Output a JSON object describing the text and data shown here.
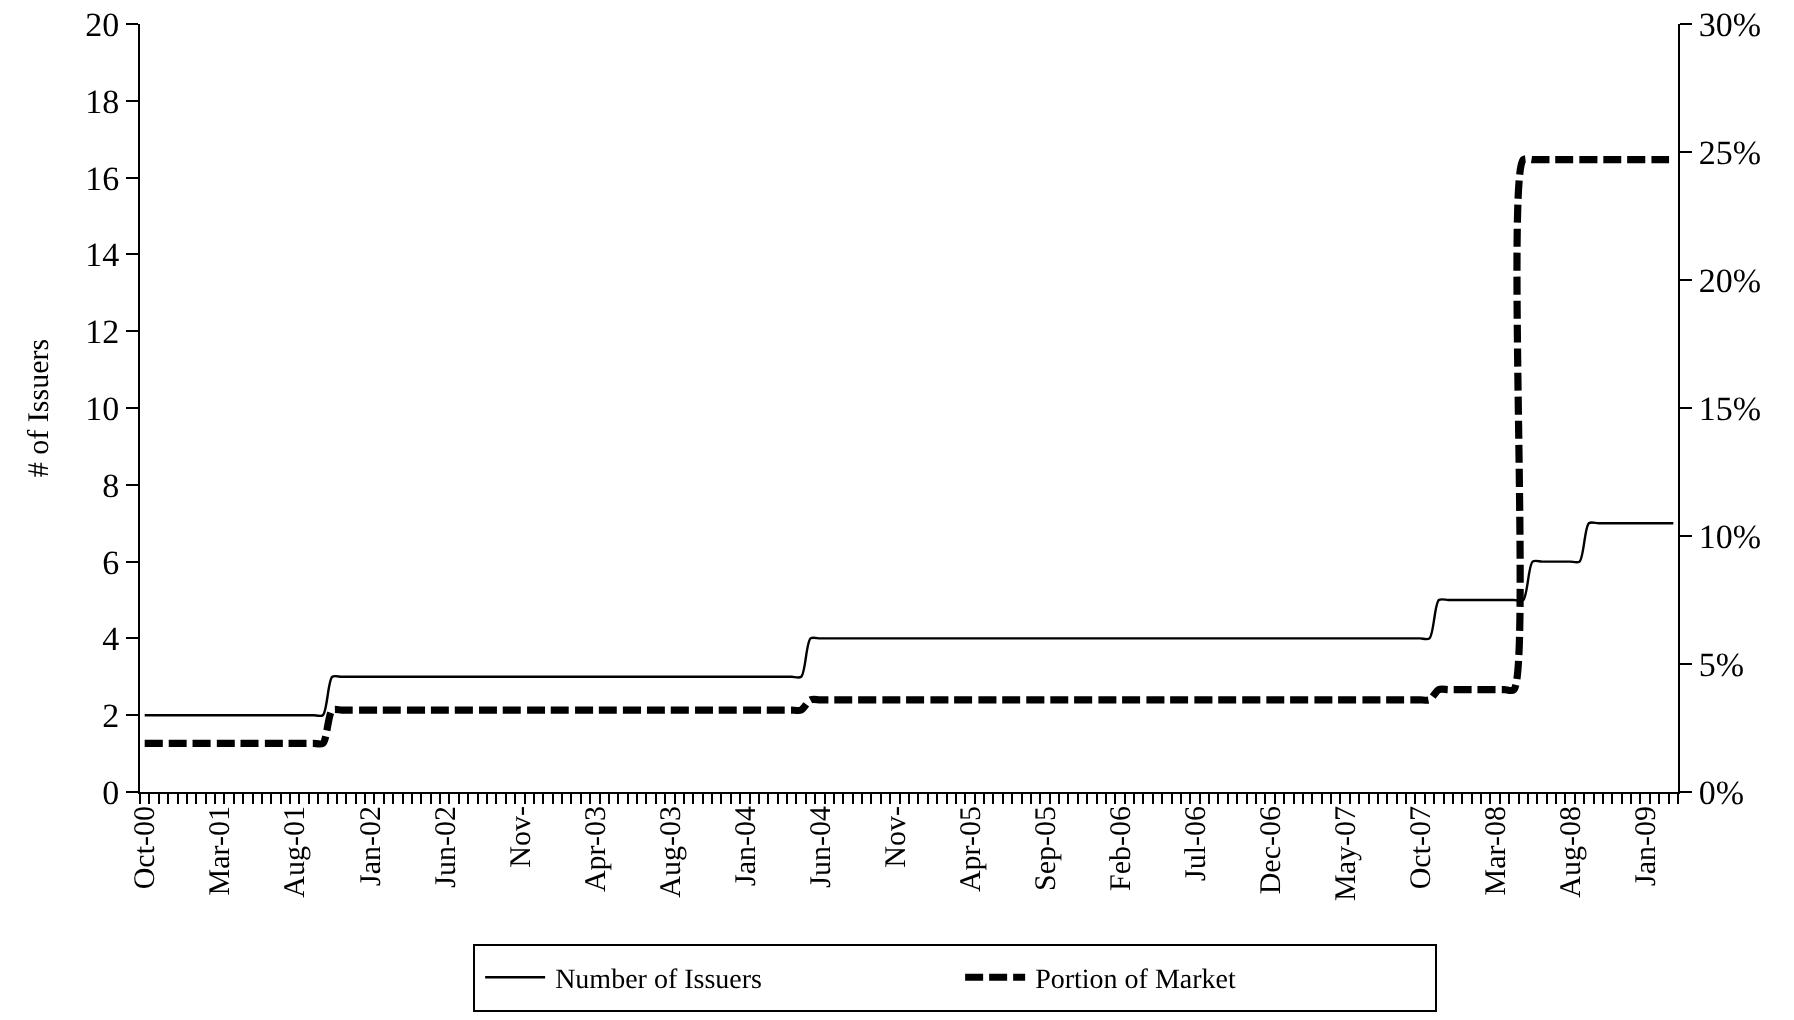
{
  "chart_data": {
    "type": "line",
    "categories": [
      "Oct-00",
      null,
      null,
      null,
      null,
      null,
      null,
      null,
      "Mar-01",
      null,
      null,
      null,
      null,
      null,
      null,
      null,
      "Aug-01",
      null,
      null,
      null,
      null,
      null,
      null,
      null,
      "Jan-02",
      null,
      null,
      null,
      null,
      null,
      null,
      null,
      "Jun-02",
      null,
      null,
      null,
      null,
      null,
      null,
      null,
      "Nov-",
      null,
      null,
      null,
      null,
      null,
      null,
      null,
      "Apr-03",
      null,
      null,
      null,
      null,
      null,
      null,
      null,
      "Aug-03",
      null,
      null,
      null,
      null,
      null,
      null,
      null,
      "Jan-04",
      null,
      null,
      null,
      null,
      null,
      null,
      null,
      "Jun-04",
      null,
      null,
      null,
      null,
      null,
      null,
      null,
      "Nov-",
      null,
      null,
      null,
      null,
      null,
      null,
      null,
      "Apr-05",
      null,
      null,
      null,
      null,
      null,
      null,
      null,
      "Sep-05",
      null,
      null,
      null,
      null,
      null,
      null,
      null,
      "Feb-06",
      null,
      null,
      null,
      null,
      null,
      null,
      null,
      "Jul-06",
      null,
      null,
      null,
      null,
      null,
      null,
      null,
      "Dec-06",
      null,
      null,
      null,
      null,
      null,
      null,
      null,
      "May-07",
      null,
      null,
      null,
      null,
      null,
      null,
      null,
      "Oct-07",
      null,
      null,
      null,
      null,
      null,
      null,
      null,
      "Mar-08",
      null,
      null,
      null,
      null,
      null,
      null,
      null,
      "Aug-08",
      null,
      null,
      null,
      null,
      null,
      null,
      null,
      "Jan-09",
      null,
      null,
      null
    ],
    "series": [
      {
        "name": "Number of Issuers",
        "color": "#000000",
        "line_style": "solid",
        "values": [
          2,
          2,
          2,
          2,
          2,
          2,
          2,
          2,
          2,
          2,
          2,
          2,
          2,
          2,
          2,
          2,
          2,
          2,
          2,
          2,
          3,
          3,
          3,
          3,
          3,
          3,
          3,
          3,
          3,
          3,
          3,
          3,
          3,
          3,
          3,
          3,
          3,
          3,
          3,
          3,
          3,
          3,
          3,
          3,
          3,
          3,
          3,
          3,
          3,
          3,
          3,
          3,
          3,
          3,
          3,
          3,
          3,
          3,
          3,
          3,
          3,
          3,
          3,
          3,
          3,
          3,
          3,
          3,
          3,
          3,
          3,
          4,
          4,
          4,
          4,
          4,
          4,
          4,
          4,
          4,
          4,
          4,
          4,
          4,
          4,
          4,
          4,
          4,
          4,
          4,
          4,
          4,
          4,
          4,
          4,
          4,
          4,
          4,
          4,
          4,
          4,
          4,
          4,
          4,
          4,
          4,
          4,
          4,
          4,
          4,
          4,
          4,
          4,
          4,
          4,
          4,
          4,
          4,
          4,
          4,
          4,
          4,
          4,
          4,
          4,
          4,
          4,
          4,
          4,
          4,
          4,
          4,
          4,
          4,
          4,
          4,
          4,
          4,
          5,
          5,
          5,
          5,
          5,
          5,
          5,
          5,
          5,
          5,
          6,
          6,
          6,
          6,
          6,
          6,
          7,
          7,
          7,
          7,
          7,
          7,
          7,
          7,
          7,
          7
        ]
      },
      {
        "name": "Portion of Market",
        "color": "#000000",
        "line_style": "dashed",
        "axis": "y2",
        "values": [
          1.9,
          1.9,
          1.9,
          1.9,
          1.9,
          1.9,
          1.9,
          1.9,
          1.9,
          1.9,
          1.9,
          1.9,
          1.9,
          1.9,
          1.9,
          1.9,
          1.9,
          1.9,
          1.9,
          1.9,
          3.2,
          3.2,
          3.2,
          3.2,
          3.2,
          3.2,
          3.2,
          3.2,
          3.2,
          3.2,
          3.2,
          3.2,
          3.2,
          3.2,
          3.2,
          3.2,
          3.2,
          3.2,
          3.2,
          3.2,
          3.2,
          3.2,
          3.2,
          3.2,
          3.2,
          3.2,
          3.2,
          3.2,
          3.2,
          3.2,
          3.2,
          3.2,
          3.2,
          3.2,
          3.2,
          3.2,
          3.2,
          3.2,
          3.2,
          3.2,
          3.2,
          3.2,
          3.2,
          3.2,
          3.2,
          3.2,
          3.2,
          3.2,
          3.2,
          3.2,
          3.2,
          3.6,
          3.6,
          3.6,
          3.6,
          3.6,
          3.6,
          3.6,
          3.6,
          3.6,
          3.6,
          3.6,
          3.6,
          3.6,
          3.6,
          3.6,
          3.6,
          3.6,
          3.6,
          3.6,
          3.6,
          3.6,
          3.6,
          3.6,
          3.6,
          3.6,
          3.6,
          3.6,
          3.6,
          3.6,
          3.6,
          3.6,
          3.6,
          3.6,
          3.6,
          3.6,
          3.6,
          3.6,
          3.6,
          3.6,
          3.6,
          3.6,
          3.6,
          3.6,
          3.6,
          3.6,
          3.6,
          3.6,
          3.6,
          3.6,
          3.6,
          3.6,
          3.6,
          3.6,
          3.6,
          3.6,
          3.6,
          3.6,
          3.6,
          3.6,
          3.6,
          3.6,
          3.6,
          3.6,
          3.6,
          3.6,
          3.6,
          3.6,
          4.0,
          4.0,
          4.0,
          4.0,
          4.0,
          4.0,
          4.0,
          4.0,
          4.0,
          24.7,
          24.7,
          24.7,
          24.7,
          24.7,
          24.7,
          24.7,
          24.7,
          24.7,
          24.7,
          24.7,
          24.7,
          24.7,
          24.7,
          24.7,
          24.7,
          24.7
        ]
      }
    ],
    "ylabel": "# of Issuers",
    "ylim": [
      0,
      20
    ],
    "yticks": [
      0,
      2,
      4,
      6,
      8,
      10,
      12,
      14,
      16,
      18,
      20
    ],
    "y2lim": [
      0,
      30
    ],
    "y2ticks": [
      {
        "value": 0,
        "label": "0%"
      },
      {
        "value": 5,
        "label": "5%"
      },
      {
        "value": 10,
        "label": "10%"
      },
      {
        "value": 15,
        "label": "15%"
      },
      {
        "value": 20,
        "label": "20%"
      },
      {
        "value": 25,
        "label": "25%"
      },
      {
        "value": 30,
        "label": "30%"
      }
    ],
    "legend": "bottom"
  }
}
